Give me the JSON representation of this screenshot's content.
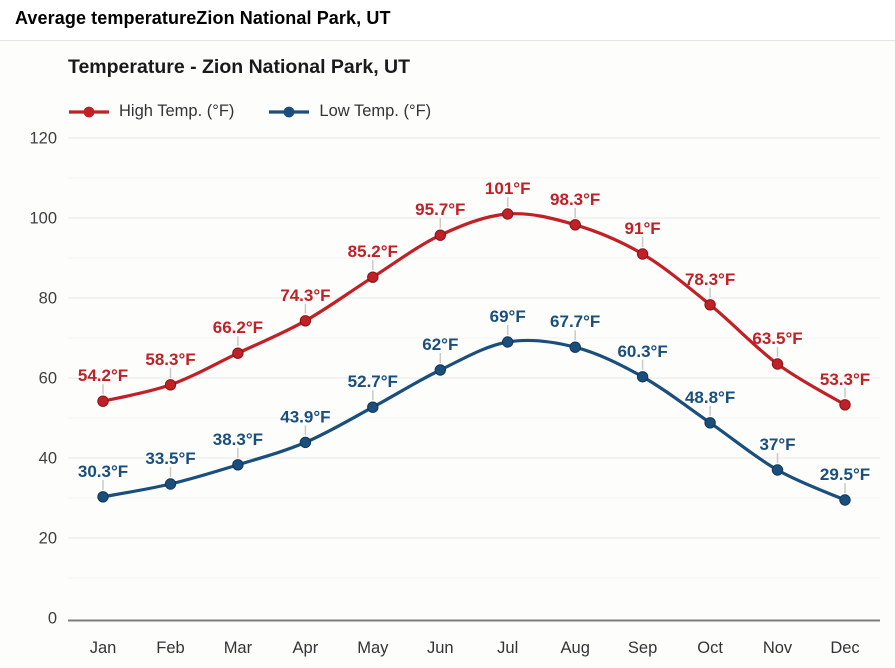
{
  "page": {
    "title": "Average temperatureZion National Park, UT"
  },
  "chart": {
    "title": "Temperature - Zion National Park, UT",
    "legend": [
      {
        "label": "High Temp. (°F)",
        "color": "#c02026"
      },
      {
        "label": "Low Temp. (°F)",
        "color": "#1a4f7d"
      }
    ],
    "colors": {
      "grid_major": "#e6e6e6",
      "grid_minor": "#f2f2f2",
      "axis_line": "#7d7d7d",
      "y_tick_label": "#3f3f3f",
      "x_tick_label": "#333333",
      "label_connector": "#c9c9c9"
    }
  },
  "chart_data": {
    "type": "line",
    "title": "Temperature - Zion National Park, UT",
    "categories": [
      "Jan",
      "Feb",
      "Mar",
      "Apr",
      "May",
      "Jun",
      "Jul",
      "Aug",
      "Sep",
      "Oct",
      "Nov",
      "Dec"
    ],
    "series": [
      {
        "name": "High Temp. (°F)",
        "color": "#c02026",
        "values": [
          54.2,
          58.3,
          66.2,
          74.3,
          85.2,
          95.7,
          101,
          98.3,
          91,
          78.3,
          63.5,
          53.3
        ],
        "labels": [
          "54.2°F",
          "58.3°F",
          "66.2°F",
          "74.3°F",
          "85.2°F",
          "95.7°F",
          "101°F",
          "98.3°F",
          "91°F",
          "78.3°F",
          "63.5°F",
          "53.3°F"
        ]
      },
      {
        "name": "Low Temp. (°F)",
        "color": "#1a4f7d",
        "values": [
          30.3,
          33.5,
          38.3,
          43.9,
          52.7,
          62,
          69,
          67.7,
          60.3,
          48.8,
          37,
          29.5
        ],
        "labels": [
          "30.3°F",
          "33.5°F",
          "38.3°F",
          "43.9°F",
          "52.7°F",
          "62°F",
          "69°F",
          "67.7°F",
          "60.3°F",
          "48.8°F",
          "37°F",
          "29.5°F"
        ]
      }
    ],
    "xlabel": "",
    "ylabel": "",
    "ylim": [
      0,
      120
    ],
    "yticks": [
      0,
      20,
      40,
      60,
      80,
      100,
      120
    ],
    "minor_grid_step": 10,
    "grid": "horizontal major+minor",
    "legend_position": "top-left",
    "data_labels": "above points with connector tick"
  }
}
